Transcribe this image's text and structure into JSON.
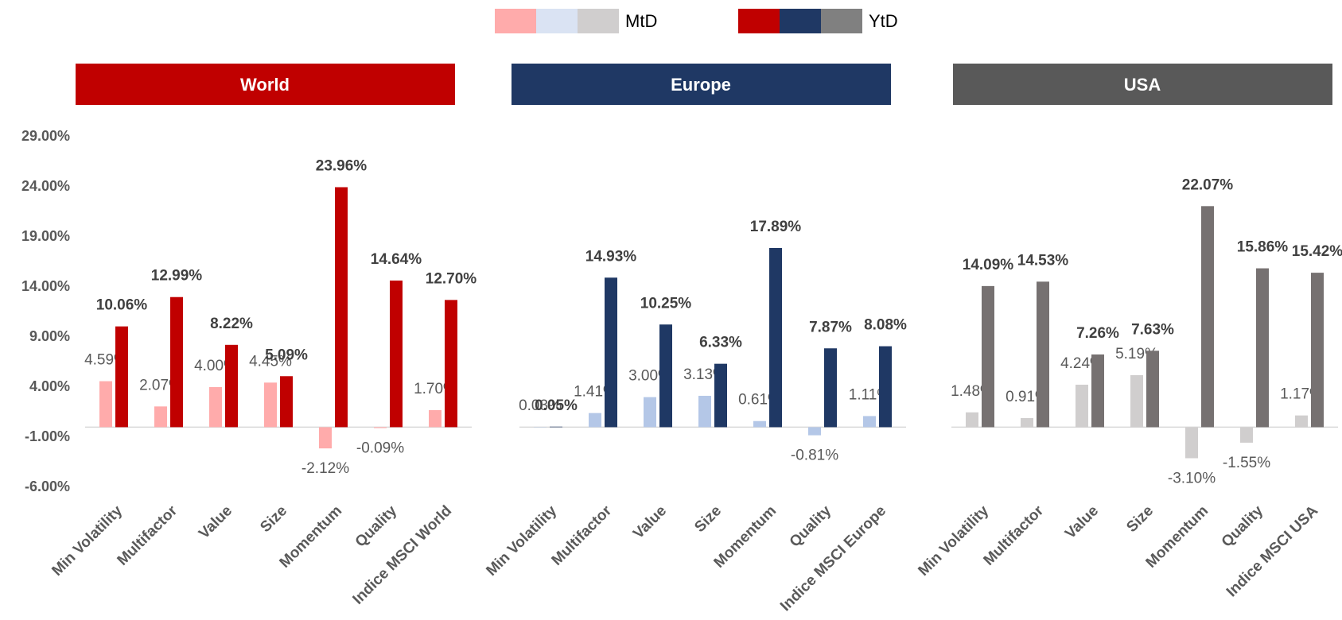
{
  "chart_data": {
    "type": "bar",
    "ylim": [
      -6,
      29
    ],
    "yticks": [
      {
        "value": -6,
        "label": "-6.00%"
      },
      {
        "value": -1,
        "label": "-1.00%"
      },
      {
        "value": 4,
        "label": "4.00%"
      },
      {
        "value": 9,
        "label": "9.00%"
      },
      {
        "value": 14,
        "label": "14.00%"
      },
      {
        "value": 19,
        "label": "19.00%"
      },
      {
        "value": 24,
        "label": "24.00%"
      },
      {
        "value": 29,
        "label": "29.00%"
      }
    ],
    "legend": [
      {
        "name": "MtD",
        "colors": [
          "#ffabab",
          "#dae3f3",
          "#d0cece"
        ]
      },
      {
        "name": "YtD",
        "colors": [
          "#c00000",
          "#1f3864",
          "#808080"
        ]
      }
    ],
    "groups": [
      {
        "title": "World",
        "color": "#c00000",
        "categories": [
          "Min Volatility",
          "Multifactor",
          "Value",
          "Size",
          "Momentum",
          "Quality",
          "Indice MSCI World"
        ],
        "series": [
          {
            "color": "#ffabab",
            "values": [
              4.59,
              2.07,
              4.0,
              4.45,
              -2.12,
              -0.09,
              1.7
            ],
            "value_labels": [
              "4.59%",
              "2.07%",
              "4.00%",
              "4.45%",
              "-2.12%",
              "-0.09%",
              "1.70%"
            ]
          },
          {
            "color": "#c00000",
            "values": [
              10.06,
              12.99,
              8.22,
              5.09,
              23.96,
              14.64,
              12.7
            ],
            "value_labels": [
              "10.06%",
              "12.99%",
              "8.22%",
              "5.09%",
              "23.96%",
              "14.64%",
              "12.70%"
            ]
          }
        ]
      },
      {
        "title": "Europe",
        "color": "#1f3864",
        "categories": [
          "Min Volatility",
          "Multifactor",
          "Value",
          "Size",
          "Momentum",
          "Quality",
          "Indice MSCI Europe"
        ],
        "series": [
          {
            "color": "#b4c7e7",
            "values": [
              0.03,
              1.41,
              3.0,
              3.13,
              0.61,
              -0.81,
              1.11
            ],
            "value_labels": [
              "0.03%",
              "1.41%",
              "3.00%",
              "3.13%",
              "0.61%",
              "-0.81%",
              "1.11%"
            ]
          },
          {
            "color": "#1f3864",
            "values": [
              0.05,
              14.93,
              10.25,
              6.33,
              17.89,
              7.87,
              8.08
            ],
            "value_labels": [
              "0.05%",
              "14.93%",
              "10.25%",
              "6.33%",
              "17.89%",
              "7.87%",
              "8.08%"
            ]
          }
        ]
      },
      {
        "title": "USA",
        "color": "#595959",
        "categories": [
          "Min Volatility",
          "Multifactor",
          "Value",
          "Size",
          "Momentum",
          "Quality",
          "Indice MSCI USA"
        ],
        "series": [
          {
            "color": "#d0cece",
            "values": [
              1.48,
              0.91,
              4.24,
              5.19,
              -3.1,
              -1.55,
              1.17
            ],
            "value_labels": [
              "1.48%",
              "0.91%",
              "4.24%",
              "5.19%",
              "-3.10%",
              "-1.55%",
              "1.17%"
            ]
          },
          {
            "color": "#767171",
            "values": [
              14.09,
              14.53,
              7.26,
              7.63,
              22.07,
              15.86,
              15.42
            ],
            "value_labels": [
              "14.09%",
              "14.53%",
              "7.26%",
              "7.63%",
              "22.07%",
              "15.86%",
              "15.42%"
            ]
          }
        ]
      }
    ]
  }
}
